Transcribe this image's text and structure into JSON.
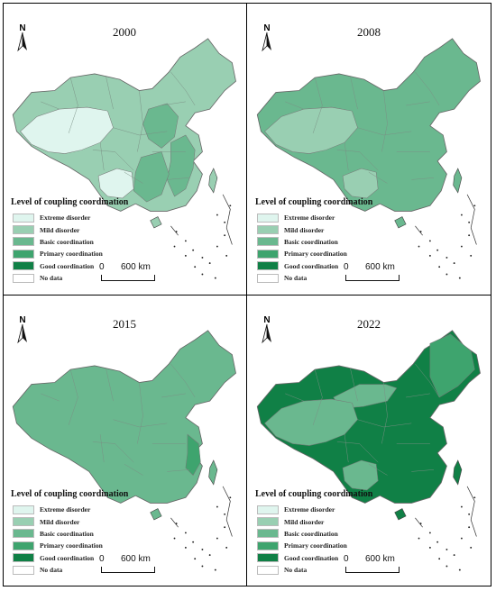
{
  "legend": {
    "title": "Level of coupling coordination",
    "items": [
      {
        "label": "Extreme disorder",
        "color": "#dff5ee"
      },
      {
        "label": "Mild disorder",
        "color": "#99cfb2"
      },
      {
        "label": "Basic coordination",
        "color": "#6ab88f"
      },
      {
        "label": "Primary coordination",
        "color": "#3ea46e"
      },
      {
        "label": "Good coordination",
        "color": "#108046"
      },
      {
        "label": "No data",
        "color": "#ffffff"
      }
    ]
  },
  "scale": {
    "zero": "0",
    "distance": "600 km"
  },
  "north_label": "N",
  "panels": [
    {
      "year": "2000",
      "base_level": "Mild disorder",
      "regions": [
        {
          "name": "tibet-qinghai",
          "level": "Extreme disorder"
        },
        {
          "name": "southwest",
          "level": "Extreme disorder"
        },
        {
          "name": "north-china-plain",
          "level": "Basic coordination"
        },
        {
          "name": "east-coast",
          "level": "Basic coordination"
        },
        {
          "name": "central-south",
          "level": "Basic coordination"
        }
      ]
    },
    {
      "year": "2008",
      "base_level": "Basic coordination",
      "regions": [
        {
          "name": "tibet-qinghai",
          "level": "Mild disorder"
        },
        {
          "name": "southwest",
          "level": "Mild disorder"
        }
      ]
    },
    {
      "year": "2015",
      "base_level": "Basic coordination",
      "regions": [
        {
          "name": "jiangsu-zhejiang",
          "level": "Primary coordination"
        }
      ]
    },
    {
      "year": "2022",
      "base_level": "Good coordination",
      "regions": [
        {
          "name": "inner-north",
          "level": "Basic coordination"
        },
        {
          "name": "tibet-qinghai",
          "level": "Basic coordination"
        },
        {
          "name": "southwest",
          "level": "Basic coordination"
        },
        {
          "name": "northeast",
          "level": "Primary coordination"
        }
      ]
    }
  ]
}
